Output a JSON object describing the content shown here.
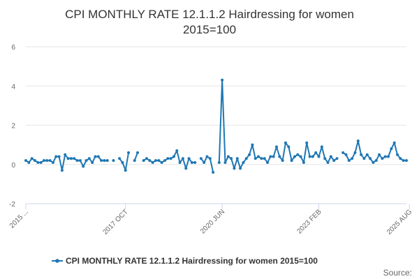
{
  "chart_data": {
    "type": "line",
    "title_lines": [
      "CPI MONTHLY RATE 12.1.1.2 Hairdressing for women",
      "2015=100"
    ],
    "ylim": [
      -2,
      6
    ],
    "yticks": [
      "-2",
      "0",
      "2",
      "4",
      "6"
    ],
    "xticks": [
      {
        "label": "2015 ...",
        "index": 0
      },
      {
        "label": "2017 OCT",
        "index": 33
      },
      {
        "label": "2020 JUN",
        "index": 65
      },
      {
        "label": "2023 FEB",
        "index": 97
      },
      {
        "label": "2025 AUG",
        "index": 127
      }
    ],
    "grid": true,
    "legend_position": "bottom",
    "series": [
      {
        "name": "CPI MONTHLY RATE 12.1.1.2 Hairdressing for women 2015=100",
        "color": "#1f77b4",
        "values": [
          0.2,
          0.1,
          0.3,
          0.2,
          0.1,
          0.1,
          0.2,
          0.2,
          0.2,
          0.1,
          0.4,
          0.4,
          -0.3,
          0.5,
          0.3,
          0.3,
          0.3,
          0.2,
          0.2,
          -0.1,
          0.2,
          0.3,
          0.1,
          0.4,
          0.4,
          0.2,
          0.2,
          0.2,
          null,
          0.2,
          null,
          0.3,
          0.1,
          -0.3,
          0.6,
          null,
          0.2,
          0.6,
          null,
          0.2,
          0.3,
          0.2,
          0.1,
          0.2,
          0.2,
          0.1,
          0.2,
          0.3,
          0.3,
          0.4,
          0.7,
          0.1,
          0.3,
          -0.2,
          0.3,
          0.1,
          0.1,
          null,
          0.3,
          0.1,
          0.4,
          0.3,
          -0.4,
          null,
          0.1,
          4.3,
          0.1,
          0.4,
          0.3,
          -0.2,
          0.3,
          -0.2,
          0.1,
          0.3,
          0.5,
          1.0,
          0.3,
          0.4,
          0.3,
          0.3,
          0.1,
          0.4,
          0.4,
          0.9,
          0.4,
          0.2,
          1.1,
          0.9,
          0.2,
          0.4,
          0.5,
          0.4,
          0.1,
          1.1,
          0.4,
          0.4,
          0.6,
          0.4,
          0.9,
          0.3,
          0.1,
          0.4,
          0.2,
          0.3,
          null,
          0.6,
          0.5,
          0.2,
          0.3,
          0.6,
          1.2,
          0.5,
          0.3,
          0.5,
          0.3,
          0.1,
          0.2,
          0.5,
          0.3,
          0.4,
          0.4,
          0.8,
          1.1,
          0.5,
          0.3,
          0.2,
          0.2
        ]
      }
    ]
  },
  "credits": "Source:"
}
